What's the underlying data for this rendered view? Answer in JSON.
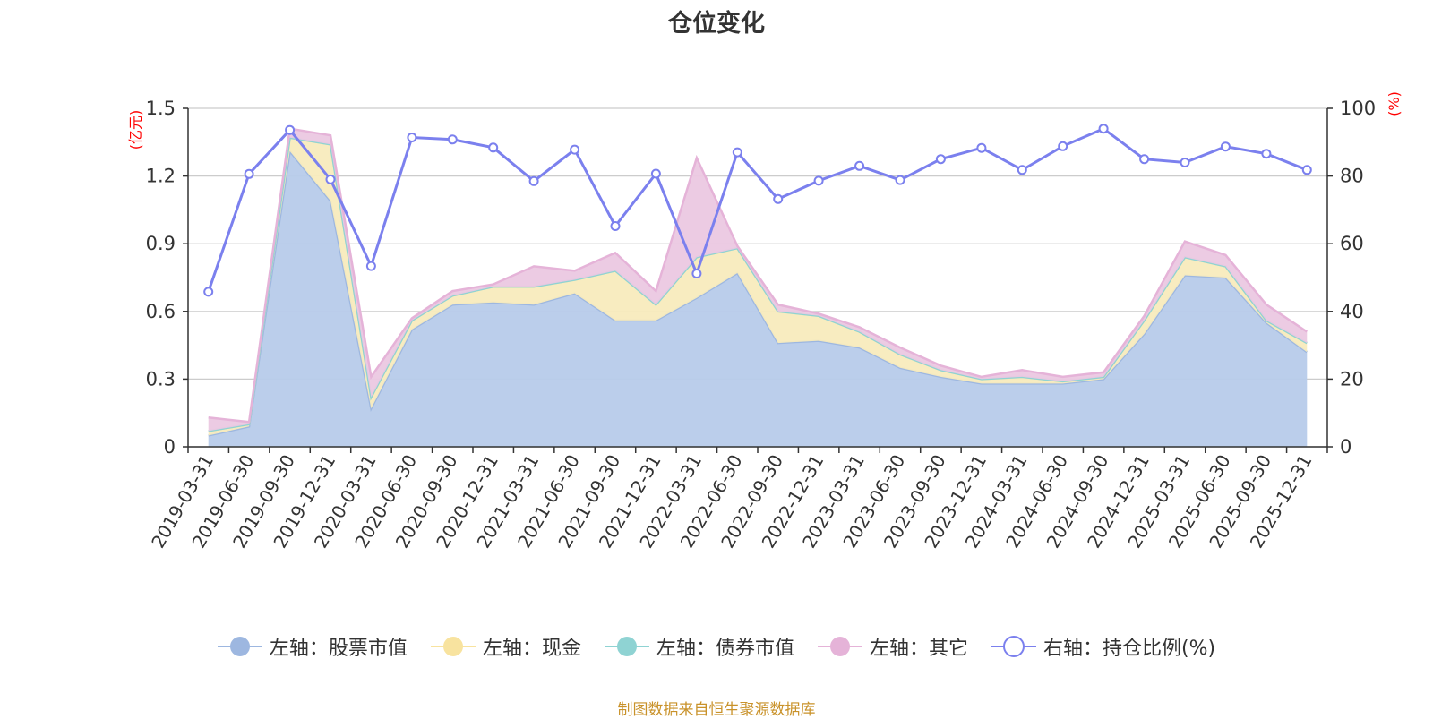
{
  "chart_data": {
    "type": "area",
    "title": "仓位变化",
    "left_unit": "(亿元)",
    "right_unit": "(%)",
    "left_ylim": [
      0,
      1.5
    ],
    "left_yticks": [
      "0",
      "0.3",
      "0.6",
      "0.9",
      "1.2",
      "1.5"
    ],
    "right_ylim": [
      0,
      100
    ],
    "right_yticks": [
      "0",
      "20",
      "40",
      "60",
      "80",
      "100"
    ],
    "categories": [
      "2019-03-31",
      "2019-06-30",
      "2019-09-30",
      "2019-12-31",
      "2020-03-31",
      "2020-06-30",
      "2020-09-30",
      "2020-12-31",
      "2021-03-31",
      "2021-06-30",
      "2021-09-30",
      "2021-12-31",
      "2022-03-31",
      "2022-06-30",
      "2022-09-30",
      "2022-12-31",
      "2023-03-31",
      "2023-06-30",
      "2023-09-30",
      "2023-12-31",
      "2024-03-31",
      "2024-06-30",
      "2024-09-30",
      "2024-12-31",
      "2025-03-31",
      "2025-06-30",
      "2025-09-30",
      "2025-12-31"
    ],
    "series": [
      {
        "name": "左轴：股票市值",
        "axis": "left",
        "stacked": true,
        "color": "#9db7e0",
        "fill": "#b7cbea",
        "values": [
          0.05,
          0.09,
          1.31,
          1.09,
          0.17,
          0.52,
          0.63,
          0.64,
          0.63,
          0.68,
          0.56,
          0.56,
          0.66,
          0.77,
          0.46,
          0.47,
          0.44,
          0.35,
          0.31,
          0.28,
          0.28,
          0.28,
          0.3,
          0.5,
          0.76,
          0.75,
          0.55,
          0.42
        ]
      },
      {
        "name": "左轴：现金",
        "axis": "left",
        "stacked": true,
        "color": "#f5e3a5",
        "fill": "#f8ebbd",
        "values": [
          0.02,
          0.01,
          0.06,
          0.25,
          0.05,
          0.04,
          0.04,
          0.07,
          0.08,
          0.06,
          0.22,
          0.07,
          0.18,
          0.11,
          0.14,
          0.11,
          0.07,
          0.06,
          0.03,
          0.02,
          0.03,
          0.01,
          0.01,
          0.06,
          0.08,
          0.05,
          0.01,
          0.04
        ]
      },
      {
        "name": "左轴：债券市值",
        "axis": "left",
        "stacked": true,
        "color": "#8fd3d3",
        "fill": "#b2e2e2",
        "values": [
          0,
          0,
          0,
          0,
          0,
          0,
          0,
          0,
          0,
          0,
          0,
          0,
          0,
          0,
          0,
          0,
          0,
          0,
          0,
          0,
          0,
          0,
          0,
          0,
          0,
          0,
          0,
          0
        ]
      },
      {
        "name": "左轴：其它",
        "axis": "left",
        "stacked": true,
        "color": "#e5b3d8",
        "fill": "#ebc8e2",
        "values": [
          0.06,
          0.01,
          0.04,
          0.04,
          0.09,
          0.01,
          0.02,
          0.01,
          0.09,
          0.04,
          0.08,
          0.06,
          0.44,
          0.01,
          0.03,
          0.01,
          0.02,
          0.03,
          0.02,
          0.01,
          0.03,
          0.02,
          0.02,
          0.02,
          0.07,
          0.05,
          0.07,
          0.05
        ]
      },
      {
        "name": "右轴：持仓比例(%)",
        "axis": "right",
        "stacked": false,
        "color": "#7b80ee",
        "values": [
          45.8,
          80.6,
          93.6,
          79.0,
          53.4,
          91.4,
          90.8,
          88.4,
          78.5,
          87.8,
          65.2,
          80.7,
          51.2,
          87.0,
          73.2,
          78.6,
          83.0,
          78.8,
          85.0,
          88.3,
          81.8,
          88.8,
          94.0,
          85.0,
          84.0,
          88.7,
          86.6,
          81.8
        ]
      }
    ],
    "legend_position": "bottom"
  },
  "legend": [
    {
      "label": "左轴：股票市值",
      "kind": "area",
      "color": "#9db7e0"
    },
    {
      "label": "左轴：现金",
      "kind": "area",
      "color": "#f8e39f"
    },
    {
      "label": "左轴：债券市值",
      "kind": "area",
      "color": "#8fd3d3"
    },
    {
      "label": "左轴：其它",
      "kind": "area",
      "color": "#e5b3d8"
    },
    {
      "label": "右轴：持仓比例(%)",
      "kind": "line",
      "color": "#7b80ee"
    }
  ],
  "source_note": "制图数据来自恒生聚源数据库"
}
